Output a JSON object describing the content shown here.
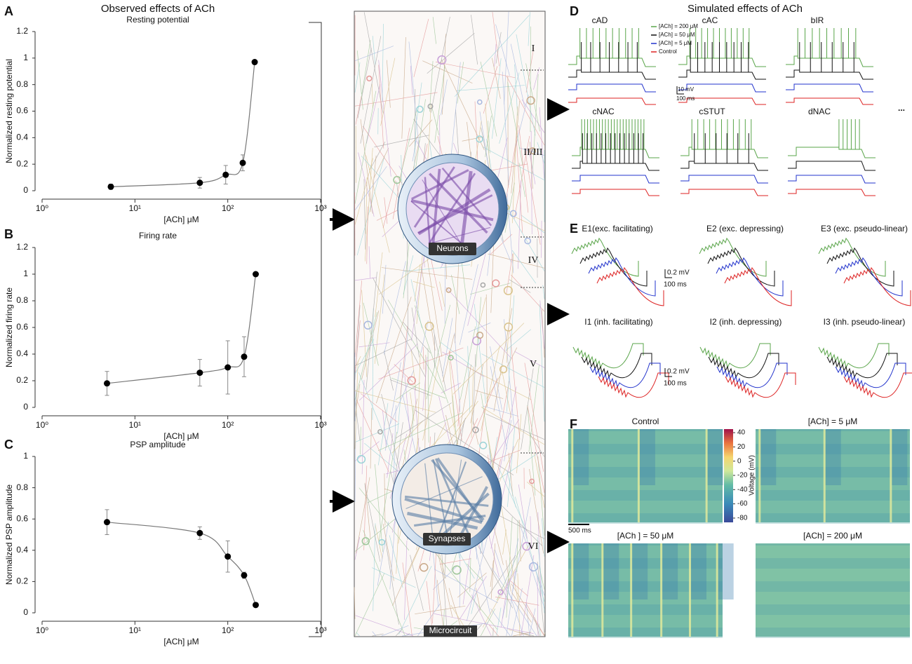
{
  "title_left": "Observed effects of ACh",
  "title_right": "Simulated effects of ACh",
  "chart_data": [
    {
      "type": "scatter",
      "panel": "A",
      "title": "Resting potential",
      "xlabel": "[ACh] μM",
      "ylabel": "Normalized resting potential",
      "x": [
        5.5,
        50,
        95,
        145,
        195
      ],
      "values": [
        0.03,
        0.06,
        0.12,
        0.21,
        0.97
      ],
      "errors": [
        0.02,
        0.04,
        0.07,
        0.06,
        0
      ],
      "xlim": [
        1,
        1000
      ],
      "log_x": true,
      "xticks": [
        {
          "value": 1,
          "label": "10⁰"
        },
        {
          "value": 10,
          "label": "10¹"
        },
        {
          "value": 100,
          "label": "10²"
        },
        {
          "value": 1000,
          "label": "10³"
        }
      ],
      "ylim": [
        0,
        1.2
      ],
      "yticks": [
        0,
        0.2,
        0.4,
        0.6,
        0.8,
        1,
        1.2
      ],
      "color": "#000000"
    },
    {
      "type": "scatter",
      "panel": "B",
      "title": "Firing rate",
      "xlabel": "[ACh] μM",
      "ylabel": "Normalized firing rate",
      "x": [
        5,
        50,
        100,
        150,
        200
      ],
      "values": [
        0.18,
        0.26,
        0.3,
        0.38,
        1.0
      ],
      "errors": [
        0.09,
        0.1,
        0.2,
        0.15,
        0
      ],
      "xlim": [
        1,
        1000
      ],
      "log_x": true,
      "xticks": [
        {
          "value": 1,
          "label": "10⁰"
        },
        {
          "value": 10,
          "label": "10¹"
        },
        {
          "value": 100,
          "label": "10²"
        },
        {
          "value": 1000,
          "label": "10³"
        }
      ],
      "ylim": [
        0,
        1.2
      ],
      "yticks": [
        0,
        0.2,
        0.4,
        0.6,
        0.8,
        1,
        1.2
      ],
      "color": "#000000"
    },
    {
      "type": "scatter",
      "panel": "C",
      "title": "PSP amplitude",
      "xlabel": "[ACh] μM",
      "ylabel": "Normalized PSP amplitude",
      "x": [
        5,
        50,
        100,
        150,
        200
      ],
      "values": [
        0.58,
        0.51,
        0.36,
        0.24,
        0.05
      ],
      "errors": [
        0.08,
        0.04,
        0.1,
        0.02,
        0
      ],
      "xlim": [
        1,
        1000
      ],
      "log_x": true,
      "xticks": [
        {
          "value": 1,
          "label": "10⁰"
        },
        {
          "value": 10,
          "label": "10¹"
        },
        {
          "value": 100,
          "label": "10²"
        },
        {
          "value": 1000,
          "label": "10³"
        }
      ],
      "ylim": [
        0,
        1
      ],
      "yticks": [
        0,
        0.2,
        0.4,
        0.6,
        0.8,
        1
      ],
      "color": "#000000"
    }
  ],
  "microcircuit": {
    "label": "Microcircuit",
    "neurons": "Neurons",
    "synapses": "Synapses",
    "layers": [
      "I",
      "II/III",
      "IV",
      "V",
      "VI"
    ]
  },
  "panel_d": {
    "letter": "D",
    "legend": [
      {
        "name": "[ACh] = 200 μM",
        "color": "#5aa54a"
      },
      {
        "name": "[ACh] = 50 μM",
        "color": "#111111"
      },
      {
        "name": "[ACh] = 5 μM",
        "color": "#2233cc"
      },
      {
        "name": "Control",
        "color": "#dd2222"
      }
    ],
    "cells": [
      "cAD",
      "cAC",
      "bIR",
      "cNAC",
      "cSTUT",
      "dNAC"
    ],
    "scale_mv": "10 mV",
    "scale_ms": "100 ms",
    "more": "..."
  },
  "panel_e": {
    "letter": "E",
    "synapses": [
      "E1(exc. facilitating)",
      "E2 (exc. depressing)",
      "E3 (exc. pseudo-linear)",
      "I1  (inh. facilitating)",
      "I2 (inh. depressing)",
      "I3 (inh. pseudo-linear)"
    ],
    "scales": [
      {
        "mv": "0.2 mV",
        "ms": "100 ms"
      },
      {
        "mv": "0.2 mV",
        "ms": "100 ms"
      }
    ]
  },
  "panel_f": {
    "letter": "F",
    "maps": [
      "Control",
      "[ACh] = 5 μM",
      "[ACh ] = 50 μM",
      "[ACh] = 200 μM"
    ],
    "time_scale": "500 ms",
    "colorbar": {
      "label": "Voltage (mV)",
      "lim": [
        -86,
        45
      ],
      "ticks": [
        40,
        20,
        0,
        -20,
        -40,
        -60,
        -80
      ]
    }
  }
}
